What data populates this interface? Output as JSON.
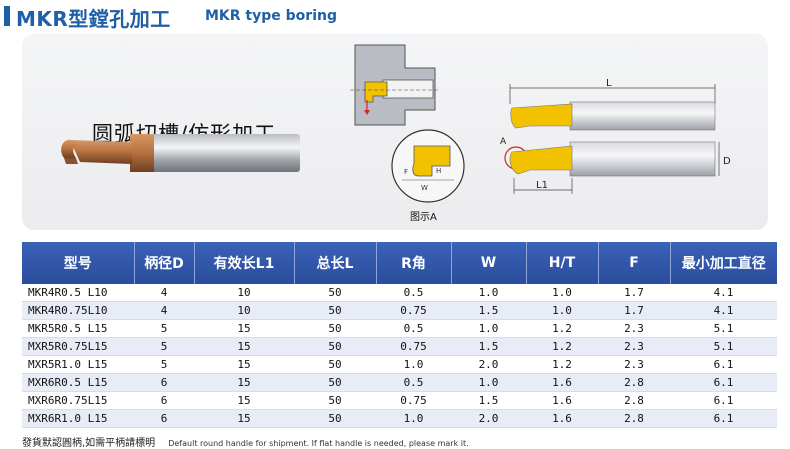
{
  "header": {
    "title": "MKR型鏜孔加工",
    "subtitle": "MKR type boring"
  },
  "panel": {
    "caption": "圆弧切槽/仿形加工",
    "diagram_labels": {
      "figure_a": "图示A",
      "L": "L",
      "L1": "L1",
      "D": "D",
      "A": "A",
      "F": "F",
      "W": "W",
      "H": "H"
    }
  },
  "table": {
    "headers": [
      "型号",
      "柄径D",
      "有效长L1",
      "总长L",
      "R角",
      "W",
      "H/T",
      "F",
      "最小加工直径"
    ],
    "rows": [
      [
        "MKR4R0.5 L10",
        "4",
        "10",
        "50",
        "0.5",
        "1.0",
        "1.0",
        "1.7",
        "4.1"
      ],
      [
        "MKR4R0.75L10",
        "4",
        "10",
        "50",
        "0.75",
        "1.5",
        "1.0",
        "1.7",
        "4.1"
      ],
      [
        "MKR5R0.5 L15",
        "5",
        "15",
        "50",
        "0.5",
        "1.0",
        "1.2",
        "2.3",
        "5.1"
      ],
      [
        "MXR5R0.75L15",
        "5",
        "15",
        "50",
        "0.75",
        "1.5",
        "1.2",
        "2.3",
        "5.1"
      ],
      [
        "MXR5R1.0 L15",
        "5",
        "15",
        "50",
        "1.0",
        "2.0",
        "1.2",
        "2.3",
        "6.1"
      ],
      [
        "MXR6R0.5 L15",
        "6",
        "15",
        "50",
        "0.5",
        "1.0",
        "1.6",
        "2.8",
        "6.1"
      ],
      [
        "MXR6R0.75L15",
        "6",
        "15",
        "50",
        "0.75",
        "1.5",
        "1.6",
        "2.8",
        "6.1"
      ],
      [
        "MXR6R1.0 L15",
        "6",
        "15",
        "50",
        "1.0",
        "2.0",
        "1.6",
        "2.8",
        "6.1"
      ]
    ]
  },
  "footnote": {
    "cn": "發貨默認圓柄,如需平柄請標明",
    "en": "Default round handle for shipment. If flat handle is needed, please mark it."
  },
  "colors": {
    "brand_blue": "#1f5fa8",
    "header_bg": "#2f56aa",
    "row_alt": "#e7ecf6",
    "tool_gold": "#f2c200",
    "tool_bronze": "#b5703e"
  }
}
